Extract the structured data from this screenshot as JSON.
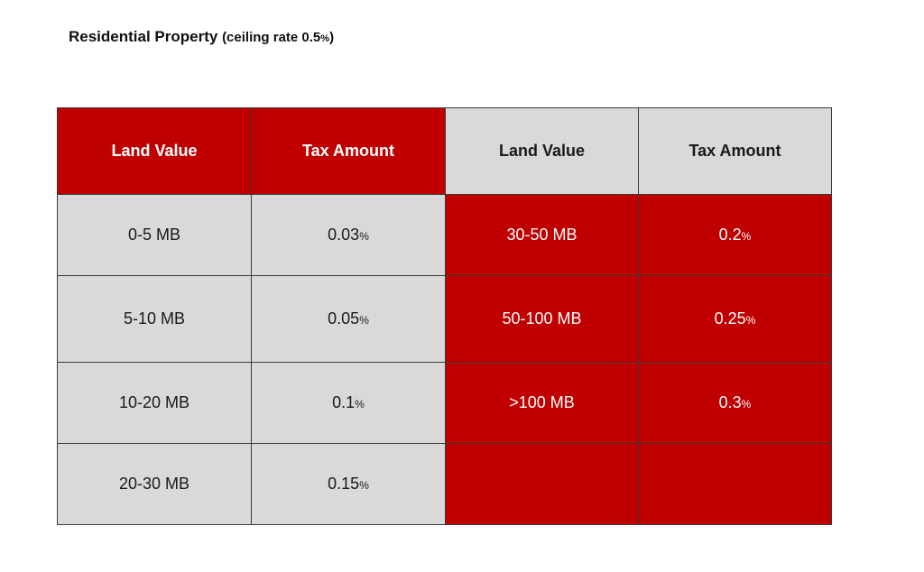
{
  "title": {
    "main": "Residential Property",
    "sub_open": "(ceiling rate 0.5",
    "sub_pct": "%",
    "sub_close": ")"
  },
  "table": {
    "headers": [
      "Land Value",
      "Tax Amount",
      "Land Value",
      "Tax Amount"
    ],
    "left_rows": [
      {
        "land": "0-5 MB",
        "tax": "0.03",
        "pct": "%"
      },
      {
        "land": "5-10 MB",
        "tax": "0.05",
        "pct": "%"
      },
      {
        "land": "10-20 MB",
        "tax": "0.1",
        "pct": "%"
      },
      {
        "land": "20-30 MB",
        "tax": "0.15",
        "pct": "%"
      }
    ],
    "right_rows": [
      {
        "land": "30-50 MB",
        "tax": "0.2",
        "pct": "%"
      },
      {
        "land": "50-100 MB",
        "tax": "0.25",
        "pct": "%"
      },
      {
        "land": ">100 MB",
        "tax": "0.3",
        "pct": "%"
      },
      {
        "land": "",
        "tax": "",
        "pct": ""
      }
    ]
  },
  "colors": {
    "red": "#c00000",
    "grey": "#d9d9d9"
  }
}
